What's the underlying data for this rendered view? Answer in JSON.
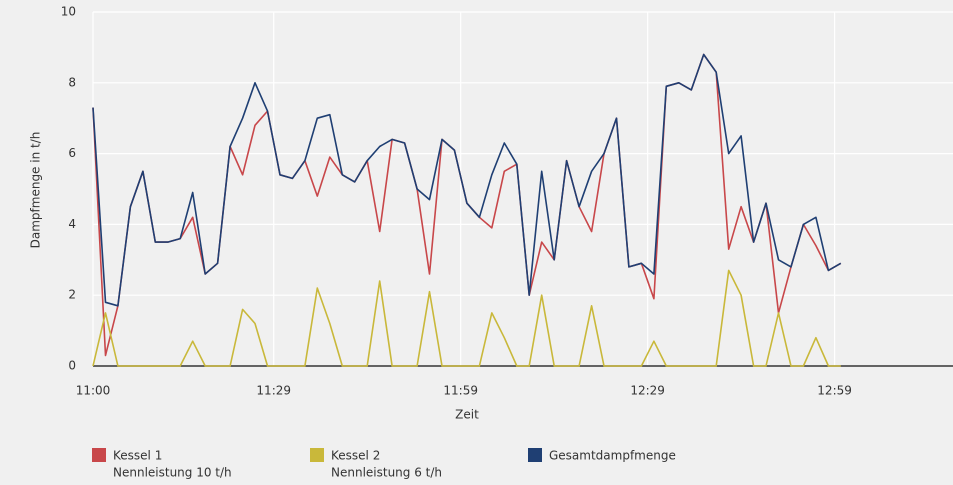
{
  "chart_data": {
    "type": "line",
    "x_label": "Zeit",
    "y_label": "Dampfmenge in t/h",
    "x": [
      660,
      662,
      664,
      666,
      668,
      670,
      672,
      674,
      676,
      678,
      680,
      682,
      684,
      686,
      688,
      690,
      692,
      694,
      696,
      698,
      700,
      702,
      704,
      706,
      708,
      710,
      712,
      714,
      716,
      718,
      720,
      722,
      724,
      726,
      728,
      730,
      732,
      734,
      736,
      738,
      740,
      742,
      744,
      746,
      748,
      750,
      752,
      754,
      756,
      758,
      760,
      762,
      764,
      766,
      768,
      770,
      772,
      774,
      776,
      778,
      780
    ],
    "xlim": [
      660,
      798
    ],
    "xticks": [
      {
        "value": 660,
        "label": "11:00"
      },
      {
        "value": 689,
        "label": "11:29"
      },
      {
        "value": 719,
        "label": "11:59"
      },
      {
        "value": 749,
        "label": "12:29"
      },
      {
        "value": 779,
        "label": "12:59"
      }
    ],
    "ylim": [
      0,
      10
    ],
    "yticks": [
      0,
      2,
      4,
      6,
      8,
      10
    ],
    "grid": true,
    "series": [
      {
        "name": "Kessel 1",
        "description": "Nennleistung 10 t/h",
        "color": "#c8474a",
        "values": [
          7.3,
          0.3,
          1.7,
          4.5,
          5.5,
          3.5,
          3.5,
          3.6,
          4.2,
          2.6,
          2.9,
          6.2,
          5.4,
          6.8,
          7.2,
          5.4,
          5.3,
          5.8,
          4.8,
          5.9,
          5.4,
          5.2,
          5.8,
          3.8,
          6.4,
          6.3,
          5.0,
          2.6,
          6.4,
          6.1,
          4.6,
          4.2,
          3.9,
          5.5,
          5.7,
          2.0,
          3.5,
          3.0,
          5.8,
          4.5,
          3.8,
          6.0,
          7.0,
          2.8,
          2.9,
          1.9,
          7.9,
          8.0,
          7.8,
          8.8,
          8.3,
          3.3,
          4.5,
          3.5,
          4.6,
          1.5,
          2.8,
          4.0,
          3.4,
          2.7,
          2.9
        ]
      },
      {
        "name": "Kessel 2",
        "description": "Nennleistung 6 t/h",
        "color": "#c9b83a",
        "values": [
          0,
          1.5,
          0,
          0,
          0,
          0,
          0,
          0,
          0.7,
          0,
          0,
          0,
          1.6,
          1.2,
          0,
          0,
          0,
          0,
          2.2,
          1.2,
          0,
          0,
          0,
          2.4,
          0,
          0,
          0,
          2.1,
          0,
          0,
          0,
          0,
          1.5,
          0.8,
          0,
          0,
          2.0,
          0,
          0,
          0,
          1.7,
          0,
          0,
          0,
          0,
          0.7,
          0,
          0,
          0,
          0,
          0,
          2.7,
          2.0,
          0,
          0,
          1.5,
          0,
          0,
          0.8,
          0,
          0
        ]
      },
      {
        "name": "Gesamtdampfmenge",
        "color": "#1f3f73",
        "values": [
          7.3,
          1.8,
          1.7,
          4.5,
          5.5,
          3.5,
          3.5,
          3.6,
          4.9,
          2.6,
          2.9,
          6.2,
          7.0,
          8.0,
          7.2,
          5.4,
          5.3,
          5.8,
          7.0,
          7.1,
          5.4,
          5.2,
          5.8,
          6.2,
          6.4,
          6.3,
          5.0,
          4.7,
          6.4,
          6.1,
          4.6,
          4.2,
          5.4,
          6.3,
          5.7,
          2.0,
          5.5,
          3.0,
          5.8,
          4.5,
          5.5,
          6.0,
          7.0,
          2.8,
          2.9,
          2.6,
          7.9,
          8.0,
          7.8,
          8.8,
          8.3,
          6.0,
          6.5,
          3.5,
          4.6,
          3.0,
          2.8,
          4.0,
          4.2,
          2.7,
          2.9
        ]
      }
    ]
  }
}
